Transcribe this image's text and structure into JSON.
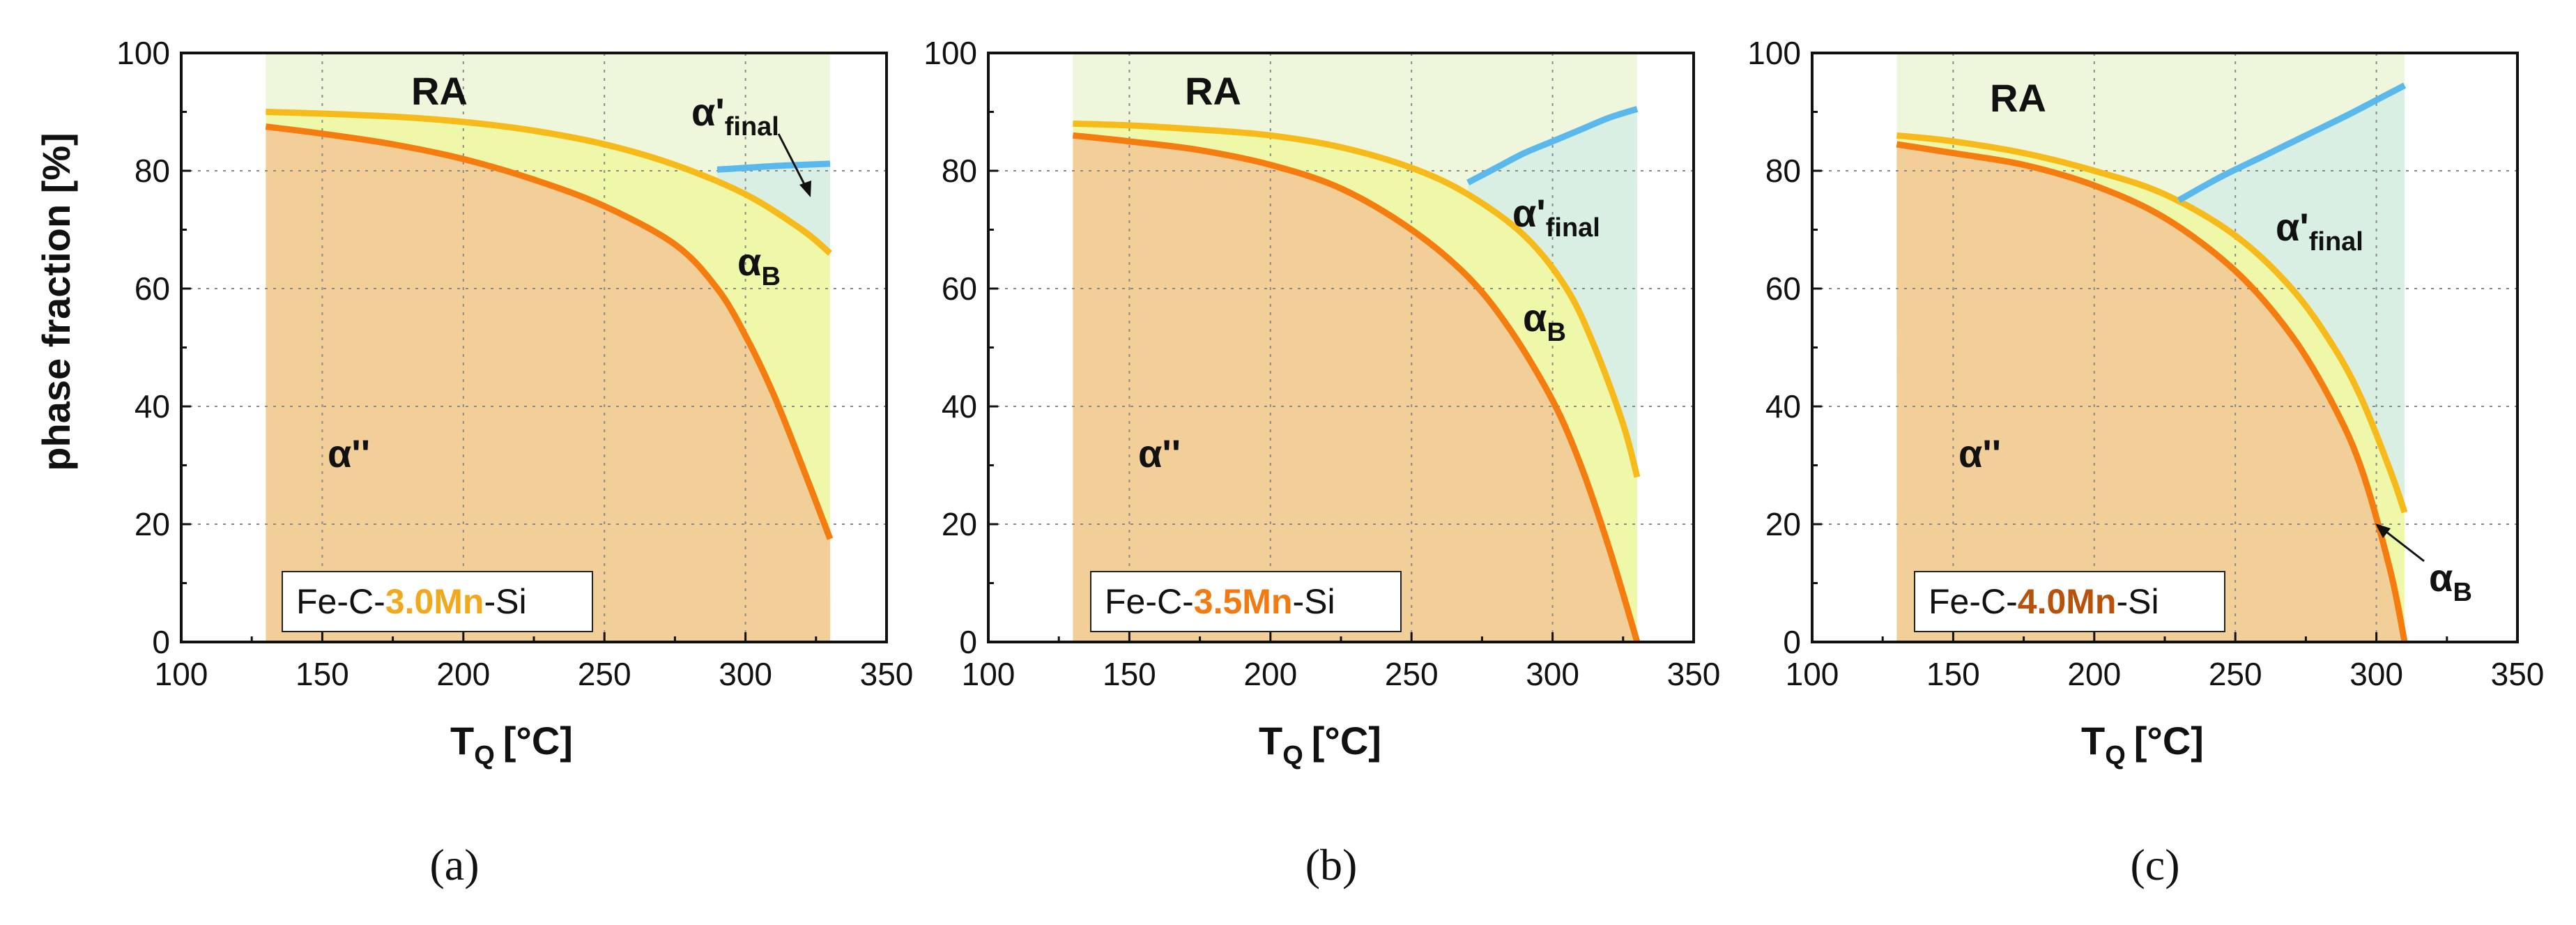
{
  "colors": {
    "ra_fill": "#eef6dc",
    "bainite_fill": "#eef8a8",
    "final_fill": "#d9efe3",
    "martensite_fill": "#f2cf99",
    "rb_line": "#f6bb1a",
    "mart_line": "#f57c0f",
    "final_line": "#5ab8ec",
    "alloy_30": "#f2a81d",
    "alloy_35": "#f27a12",
    "alloy_40": "#b8520a"
  },
  "chart_data": [
    {
      "type": "area",
      "caption": "(a)",
      "ylabel": "phase fraction [%]",
      "xlabel_main": "T",
      "xlabel_sub": "Q",
      "xlabel_unit": "[°C]",
      "xlim": [
        100,
        350
      ],
      "ylim": [
        0,
        100
      ],
      "xticks": [
        100,
        150,
        200,
        250,
        300,
        350
      ],
      "yticks": [
        0,
        20,
        40,
        60,
        80,
        100
      ],
      "grid": true,
      "alloy": {
        "pre": "Fe-C-",
        "hl": "3.0Mn",
        "post": "-Si",
        "hl_color": "#f2a81d"
      },
      "region_labels": {
        "ra": "RA",
        "mart": "α''",
        "bainite": "α",
        "bainite_sub": "B",
        "final": "α'",
        "final_sub": "final"
      },
      "x_range": [
        130,
        330
      ],
      "series": [
        {
          "name": "RA / α_B boundary",
          "x": [
            130,
            150,
            175,
            200,
            225,
            250,
            275,
            300,
            320,
            330
          ],
          "y": [
            90,
            89.7,
            89.2,
            88.3,
            86.8,
            84.5,
            81,
            76,
            70,
            66
          ]
        },
        {
          "name": "α'' / α_B boundary",
          "x": [
            130,
            150,
            175,
            200,
            225,
            250,
            275,
            290,
            300,
            310,
            320,
            330
          ],
          "y": [
            87.5,
            86.3,
            84.5,
            82,
            78.5,
            74,
            67.5,
            60,
            52,
            42,
            30,
            17.5
          ]
        },
        {
          "name": "α'_final",
          "x": [
            290,
            300,
            310,
            320,
            330
          ],
          "y": [
            80.2,
            80.5,
            80.8,
            81,
            81.2
          ]
        }
      ],
      "annotations": {
        "arrow": "final"
      }
    },
    {
      "type": "area",
      "caption": "(b)",
      "xlabel_main": "T",
      "xlabel_sub": "Q",
      "xlabel_unit": "[°C]",
      "xlim": [
        100,
        350
      ],
      "ylim": [
        0,
        100
      ],
      "xticks": [
        100,
        150,
        200,
        250,
        300,
        350
      ],
      "yticks": [
        0,
        20,
        40,
        60,
        80,
        100
      ],
      "grid": true,
      "alloy": {
        "pre": "Fe-C-",
        "hl": "3.5Mn",
        "post": "-Si",
        "hl_color": "#f27a12"
      },
      "region_labels": {
        "ra": "RA",
        "mart": "α''",
        "bainite": "α",
        "bainite_sub": "B",
        "final": "α'",
        "final_sub": "final"
      },
      "x_range": [
        130,
        330
      ],
      "series": [
        {
          "name": "RA / α_B boundary",
          "x": [
            130,
            150,
            175,
            200,
            225,
            250,
            270,
            290,
            305,
            315,
            325,
            330
          ],
          "y": [
            88,
            87.7,
            87,
            86,
            84,
            80.5,
            76,
            69,
            60,
            50,
            37,
            28
          ]
        },
        {
          "name": "α'' / α_B boundary",
          "x": [
            130,
            150,
            175,
            200,
            225,
            250,
            270,
            285,
            300,
            310,
            320,
            330
          ],
          "y": [
            86,
            85,
            83.5,
            81,
            77,
            70,
            62,
            53,
            41,
            30,
            16,
            0
          ]
        },
        {
          "name": "α'_final",
          "x": [
            270,
            280,
            290,
            300,
            310,
            320,
            330
          ],
          "y": [
            78,
            80.5,
            83,
            85,
            87,
            89,
            90.5
          ]
        }
      ],
      "annotations": {
        "arrow": "none"
      }
    },
    {
      "type": "area",
      "caption": "(c)",
      "xlabel_main": "T",
      "xlabel_sub": "Q",
      "xlabel_unit": "[°C]",
      "xlim": [
        100,
        350
      ],
      "ylim": [
        0,
        100
      ],
      "xticks": [
        100,
        150,
        200,
        250,
        300,
        350
      ],
      "yticks": [
        0,
        20,
        40,
        60,
        80,
        100
      ],
      "grid": true,
      "alloy": {
        "pre": "Fe-C-",
        "hl": "4.0Mn",
        "post": "-Si",
        "hl_color": "#b8520a"
      },
      "region_labels": {
        "ra": "RA",
        "mart": "α''",
        "bainite": "α",
        "bainite_sub": "B",
        "final": "α'",
        "final_sub": "final"
      },
      "x_range": [
        130,
        310
      ],
      "series": [
        {
          "name": "RA / α_B boundary",
          "x": [
            130,
            150,
            175,
            200,
            225,
            250,
            270,
            285,
            295,
            305,
            310
          ],
          "y": [
            86,
            85,
            83,
            80,
            76,
            69,
            60,
            50,
            41,
            29,
            22
          ]
        },
        {
          "name": "α'' / α_B boundary",
          "x": [
            130,
            150,
            175,
            200,
            225,
            250,
            270,
            285,
            295,
            305,
            310
          ],
          "y": [
            84.5,
            83,
            81,
            77.5,
            72,
            63,
            52,
            40,
            29,
            12,
            0
          ]
        },
        {
          "name": "α'_final",
          "x": [
            230,
            245,
            260,
            275,
            290,
            300,
            310
          ],
          "y": [
            75,
            79,
            82.5,
            86,
            89.5,
            92,
            94.5
          ]
        }
      ],
      "annotations": {
        "arrow": "bainite"
      }
    }
  ]
}
